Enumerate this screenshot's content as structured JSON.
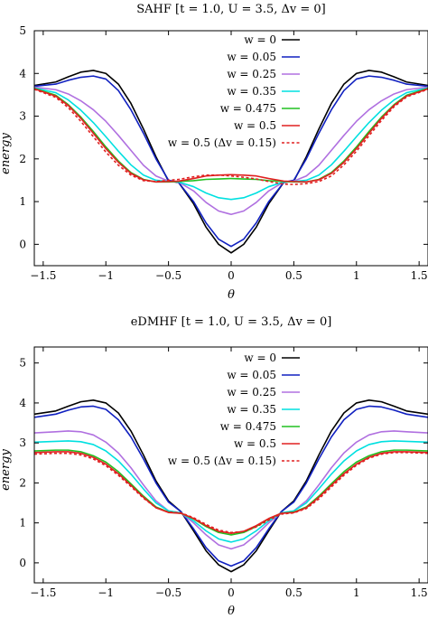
{
  "chart_data": [
    {
      "type": "line",
      "title": "SAHF [t = 1.0,  U = 3.5,  Δv = 0]",
      "xlabel": "θ",
      "ylabel": "energy",
      "xlim": [
        -1.571,
        1.571
      ],
      "ylim": [
        -0.5,
        5.0
      ],
      "xticks": [
        -1.5,
        -1,
        -0.5,
        0,
        0.5,
        1,
        1.5
      ],
      "xtick_labels": [
        "−1.5",
        "−1",
        "−0.5",
        "0",
        "0.5",
        "1",
        "1.5"
      ],
      "yticks": [
        0,
        1,
        2,
        3,
        4,
        5
      ],
      "ytick_labels": [
        "0",
        "1",
        "2",
        "3",
        "4",
        "5"
      ],
      "grid": false,
      "legend_position": "top-right",
      "x": [
        -1.571,
        -1.4,
        -1.3,
        -1.2,
        -1.1,
        -1.0,
        -0.9,
        -0.8,
        -0.7,
        -0.6,
        -0.5,
        -0.42,
        -0.3,
        -0.2,
        -0.1,
        0.0,
        0.1,
        0.2,
        0.3,
        0.42,
        0.5,
        0.6,
        0.7,
        0.8,
        0.9,
        1.0,
        1.1,
        1.2,
        1.3,
        1.4,
        1.571
      ],
      "series": [
        {
          "name": "w = 0",
          "color": "#000000",
          "dash": false,
          "values": [
            3.72,
            3.8,
            3.92,
            4.03,
            4.07,
            4.0,
            3.75,
            3.3,
            2.7,
            2.05,
            1.48,
            1.45,
            0.95,
            0.4,
            0.0,
            -0.2,
            0.0,
            0.4,
            0.95,
            1.45,
            1.48,
            2.05,
            2.7,
            3.3,
            3.75,
            4.0,
            4.07,
            4.03,
            3.92,
            3.8,
            3.72
          ]
        },
        {
          "name": "w = 0.05",
          "color": "#1020c0",
          "dash": false,
          "values": [
            3.7,
            3.75,
            3.84,
            3.91,
            3.94,
            3.87,
            3.6,
            3.15,
            2.6,
            2.0,
            1.5,
            1.45,
            1.0,
            0.5,
            0.12,
            -0.05,
            0.12,
            0.5,
            1.0,
            1.45,
            1.5,
            2.0,
            2.6,
            3.15,
            3.6,
            3.87,
            3.94,
            3.91,
            3.84,
            3.75,
            3.7
          ]
        },
        {
          "name": "w = 0.25",
          "color": "#b070e0",
          "dash": false,
          "values": [
            3.68,
            3.62,
            3.52,
            3.36,
            3.15,
            2.88,
            2.55,
            2.2,
            1.85,
            1.6,
            1.48,
            1.46,
            1.25,
            0.98,
            0.78,
            0.7,
            0.78,
            0.98,
            1.25,
            1.46,
            1.48,
            1.6,
            1.85,
            2.2,
            2.55,
            2.88,
            3.15,
            3.36,
            3.52,
            3.62,
            3.68
          ]
        },
        {
          "name": "w = 0.35",
          "color": "#00e0e0",
          "dash": false,
          "values": [
            3.66,
            3.55,
            3.38,
            3.14,
            2.85,
            2.52,
            2.18,
            1.86,
            1.62,
            1.5,
            1.47,
            1.46,
            1.35,
            1.2,
            1.09,
            1.05,
            1.09,
            1.2,
            1.35,
            1.46,
            1.47,
            1.5,
            1.62,
            1.86,
            2.18,
            2.52,
            2.85,
            3.14,
            3.38,
            3.55,
            3.66
          ]
        },
        {
          "name": "w = 0.475",
          "color": "#20c020",
          "dash": false,
          "values": [
            3.65,
            3.49,
            3.27,
            2.98,
            2.64,
            2.28,
            1.95,
            1.68,
            1.52,
            1.46,
            1.46,
            1.47,
            1.49,
            1.52,
            1.53,
            1.54,
            1.53,
            1.52,
            1.49,
            1.47,
            1.46,
            1.46,
            1.52,
            1.68,
            1.95,
            2.28,
            2.64,
            2.98,
            3.27,
            3.49,
            3.65
          ]
        },
        {
          "name": "w = 0.5",
          "color": "#e02020",
          "dash": false,
          "values": [
            3.64,
            3.47,
            3.25,
            2.95,
            2.6,
            2.24,
            1.92,
            1.66,
            1.51,
            1.46,
            1.47,
            1.48,
            1.54,
            1.6,
            1.62,
            1.63,
            1.62,
            1.6,
            1.54,
            1.48,
            1.47,
            1.46,
            1.51,
            1.66,
            1.92,
            2.24,
            2.6,
            2.95,
            3.25,
            3.47,
            3.64
          ]
        },
        {
          "name": "w = 0.5 (Δv = 0.15)",
          "color": "#e02020",
          "dash": true,
          "values": [
            3.63,
            3.44,
            3.2,
            2.88,
            2.52,
            2.16,
            1.85,
            1.62,
            1.49,
            1.47,
            1.5,
            1.52,
            1.58,
            1.62,
            1.62,
            1.6,
            1.57,
            1.53,
            1.47,
            1.41,
            1.4,
            1.42,
            1.47,
            1.6,
            1.86,
            2.18,
            2.54,
            2.9,
            3.22,
            3.45,
            3.63
          ]
        }
      ]
    },
    {
      "type": "line",
      "title": "eDMHF [t = 1.0,  U = 3.5,  Δv = 0]",
      "xlabel": "θ",
      "ylabel": "energy",
      "xlim": [
        -1.571,
        1.571
      ],
      "ylim": [
        -0.5,
        5.4
      ],
      "xticks": [
        -1.5,
        -1,
        -0.5,
        0,
        0.5,
        1,
        1.5
      ],
      "xtick_labels": [
        "−1.5",
        "−1",
        "−0.5",
        "0",
        "0.5",
        "1",
        "1.5"
      ],
      "yticks": [
        0,
        1,
        2,
        3,
        4,
        5
      ],
      "ytick_labels": [
        "0",
        "1",
        "2",
        "3",
        "4",
        "5"
      ],
      "grid": false,
      "legend_position": "top-right",
      "x": [
        -1.571,
        -1.4,
        -1.3,
        -1.2,
        -1.1,
        -1.0,
        -0.9,
        -0.8,
        -0.7,
        -0.6,
        -0.5,
        -0.4,
        -0.3,
        -0.2,
        -0.1,
        0.0,
        0.1,
        0.2,
        0.3,
        0.4,
        0.5,
        0.6,
        0.7,
        0.8,
        0.9,
        1.0,
        1.1,
        1.2,
        1.3,
        1.4,
        1.571
      ],
      "series": [
        {
          "name": "w = 0",
          "color": "#000000",
          "dash": false,
          "values": [
            3.72,
            3.8,
            3.92,
            4.03,
            4.07,
            4.0,
            3.75,
            3.3,
            2.7,
            2.05,
            1.55,
            1.28,
            0.8,
            0.3,
            -0.05,
            -0.22,
            -0.05,
            0.3,
            0.8,
            1.28,
            1.55,
            2.05,
            2.7,
            3.3,
            3.75,
            4.0,
            4.07,
            4.03,
            3.92,
            3.8,
            3.72
          ]
        },
        {
          "name": "w = 0.05",
          "color": "#1020c0",
          "dash": false,
          "values": [
            3.64,
            3.72,
            3.82,
            3.9,
            3.92,
            3.84,
            3.58,
            3.15,
            2.6,
            2.0,
            1.52,
            1.28,
            0.85,
            0.38,
            0.05,
            -0.08,
            0.05,
            0.38,
            0.85,
            1.28,
            1.52,
            2.0,
            2.6,
            3.15,
            3.58,
            3.84,
            3.92,
            3.9,
            3.82,
            3.72,
            3.64
          ]
        },
        {
          "name": "w = 0.25",
          "color": "#b070e0",
          "dash": false,
          "values": [
            3.25,
            3.28,
            3.3,
            3.28,
            3.2,
            3.02,
            2.75,
            2.38,
            1.95,
            1.55,
            1.3,
            1.25,
            1.0,
            0.7,
            0.45,
            0.35,
            0.45,
            0.7,
            1.0,
            1.25,
            1.3,
            1.55,
            1.95,
            2.38,
            2.75,
            3.02,
            3.2,
            3.28,
            3.3,
            3.28,
            3.25
          ]
        },
        {
          "name": "w = 0.35",
          "color": "#00e0e0",
          "dash": false,
          "values": [
            3.02,
            3.04,
            3.05,
            3.03,
            2.96,
            2.8,
            2.55,
            2.22,
            1.85,
            1.5,
            1.3,
            1.25,
            1.05,
            0.8,
            0.6,
            0.52,
            0.6,
            0.8,
            1.05,
            1.25,
            1.3,
            1.5,
            1.85,
            2.22,
            2.55,
            2.8,
            2.96,
            3.03,
            3.05,
            3.04,
            3.02
          ]
        },
        {
          "name": "w = 0.475",
          "color": "#20c020",
          "dash": false,
          "values": [
            2.8,
            2.82,
            2.82,
            2.78,
            2.68,
            2.52,
            2.28,
            1.98,
            1.67,
            1.4,
            1.27,
            1.24,
            1.1,
            0.91,
            0.76,
            0.7,
            0.76,
            0.91,
            1.1,
            1.24,
            1.27,
            1.4,
            1.67,
            1.98,
            2.28,
            2.52,
            2.68,
            2.78,
            2.82,
            2.82,
            2.8
          ]
        },
        {
          "name": "w = 0.5",
          "color": "#e02020",
          "dash": false,
          "values": [
            2.76,
            2.78,
            2.78,
            2.74,
            2.64,
            2.47,
            2.23,
            1.94,
            1.64,
            1.38,
            1.26,
            1.24,
            1.11,
            0.93,
            0.79,
            0.74,
            0.79,
            0.93,
            1.11,
            1.24,
            1.26,
            1.38,
            1.64,
            1.94,
            2.23,
            2.47,
            2.64,
            2.74,
            2.78,
            2.78,
            2.76
          ]
        },
        {
          "name": "w = 0.5 (Δv = 0.15)",
          "color": "#e02020",
          "dash": true,
          "values": [
            2.72,
            2.74,
            2.74,
            2.7,
            2.6,
            2.43,
            2.19,
            1.91,
            1.62,
            1.38,
            1.27,
            1.25,
            1.13,
            0.96,
            0.82,
            0.76,
            0.78,
            0.9,
            1.07,
            1.22,
            1.25,
            1.36,
            1.6,
            1.9,
            2.19,
            2.44,
            2.62,
            2.72,
            2.76,
            2.76,
            2.74
          ]
        }
      ]
    }
  ]
}
